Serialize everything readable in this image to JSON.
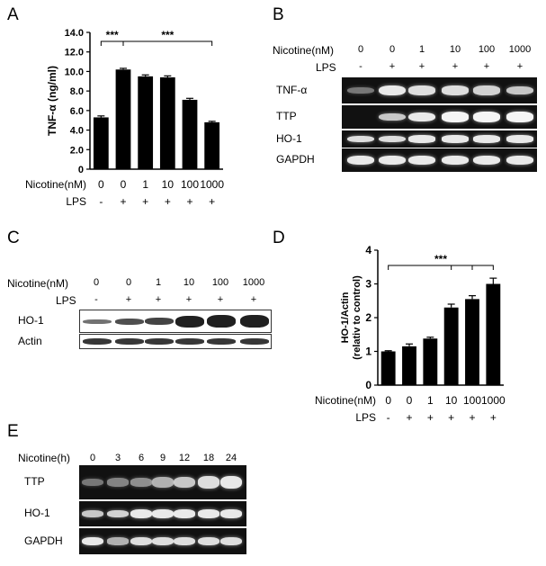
{
  "panels": {
    "A": {
      "letter": "A",
      "chart_data": {
        "type": "bar",
        "categories": [
          "0",
          "0",
          "1",
          "10",
          "100",
          "1000"
        ],
        "values": [
          5.3,
          10.2,
          9.5,
          9.4,
          7.1,
          4.8
        ],
        "errors": [
          0.15,
          0.12,
          0.15,
          0.15,
          0.15,
          0.1
        ],
        "ylabel": "TNF-α (ng/ml)",
        "ylim": [
          0,
          14
        ],
        "yticks": [
          "0",
          "2.0",
          "4.0",
          "6.0",
          "8.0",
          "10.0",
          "12.0",
          "14.0"
        ],
        "ytick_values": [
          0,
          2,
          4,
          6,
          8,
          10,
          12,
          14
        ],
        "row_labels": [
          "Nicotine(nM)",
          "LPS"
        ],
        "nicotine": [
          "0",
          "0",
          "1",
          "10",
          "100",
          "1000"
        ],
        "lps": [
          "-",
          "+",
          "+",
          "+",
          "+",
          "+"
        ],
        "sig": [
          "***",
          "***"
        ]
      }
    },
    "B": {
      "letter": "B",
      "nicotine_label": "Nicotine(nM)",
      "lps_label": "LPS",
      "nicotine": [
        "0",
        "0",
        "1",
        "10",
        "100",
        "1000"
      ],
      "lps": [
        "-",
        "+",
        "+",
        "+",
        "+",
        "+"
      ],
      "blots": [
        "TNF-α",
        "TTP",
        "HO-1",
        "GAPDH"
      ]
    },
    "C": {
      "letter": "C",
      "nicotine_label": "Nicotine(nM)",
      "lps_label": "LPS",
      "nicotine": [
        "0",
        "0",
        "1",
        "10",
        "100",
        "1000"
      ],
      "lps": [
        "-",
        "+",
        "+",
        "+",
        "+",
        "+"
      ],
      "blots": [
        "HO-1",
        "Actin"
      ]
    },
    "D": {
      "letter": "D",
      "chart_data": {
        "type": "bar",
        "categories": [
          "0",
          "0",
          "1",
          "10",
          "100",
          "1000"
        ],
        "values": [
          1.0,
          1.15,
          1.38,
          2.3,
          2.55,
          3.0
        ],
        "errors": [
          0.02,
          0.07,
          0.04,
          0.1,
          0.1,
          0.17
        ],
        "ylabel": "HO-1/Actin",
        "ylabel2": "(relativ to control)",
        "ylim": [
          0,
          4
        ],
        "yticks": [
          "0",
          "1",
          "2",
          "3",
          "4"
        ],
        "ytick_values": [
          0,
          1,
          2,
          3,
          4
        ],
        "row_labels": [
          "Nicotine(nM)",
          "LPS"
        ],
        "nicotine": [
          "0",
          "0",
          "1",
          "10",
          "100",
          "1000"
        ],
        "lps": [
          "-",
          "+",
          "+",
          "+",
          "+",
          "+"
        ],
        "sig": [
          "***"
        ]
      }
    },
    "E": {
      "letter": "E",
      "nicotine_label": "Nicotine(h)",
      "hours": [
        "0",
        "3",
        "6",
        "9",
        "12",
        "18",
        "24"
      ],
      "blots": [
        "TTP",
        "HO-1",
        "GAPDH"
      ]
    }
  }
}
